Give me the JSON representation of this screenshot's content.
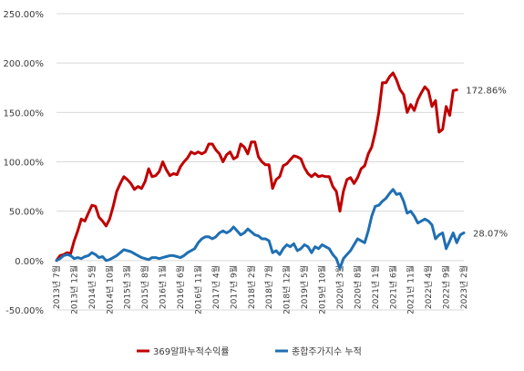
{
  "chart_data": {
    "type": "line",
    "title": "",
    "xlabel": "",
    "ylabel": "",
    "ylim": [
      -50,
      250
    ],
    "y_ticks": [
      "-50.00%",
      "0.00%",
      "50.00%",
      "100.00%",
      "150.00%",
      "200.00%",
      "250.00%"
    ],
    "y_tick_values": [
      -50,
      0,
      50,
      100,
      150,
      200,
      250
    ],
    "grid": "horizontal",
    "legend_position": "bottom",
    "x_range": [
      "2013-07",
      "2023-02"
    ],
    "x_ticks": [
      "2013년 7월",
      "2013년 12월",
      "2014년 5월",
      "2014년 10월",
      "2015년 3월",
      "2015년 8월",
      "2016년 1월",
      "2016년 6월",
      "2016년 11월",
      "2017년 4월",
      "2017년 9월",
      "2018년 2월",
      "2018년 7월",
      "2018년 12월",
      "2019년 5월",
      "2019년 10월",
      "2020년 3월",
      "2020년 8월",
      "2021년 1월",
      "2021년 6월",
      "2021년 11월",
      "2022년 4월",
      "2022년 9월",
      "2023년 2월"
    ],
    "series": [
      {
        "name": "369알파누적수익률",
        "color": "#c00000",
        "end_label": "172.86%",
        "points": [
          [
            "2013-07",
            0
          ],
          [
            "2013-08",
            5
          ],
          [
            "2013-09",
            6
          ],
          [
            "2013-10",
            8
          ],
          [
            "2013-11",
            7
          ],
          [
            "2013-12",
            20
          ],
          [
            "2014-01",
            30
          ],
          [
            "2014-02",
            42
          ],
          [
            "2014-03",
            40
          ],
          [
            "2014-04",
            48
          ],
          [
            "2014-05",
            56
          ],
          [
            "2014-06",
            55
          ],
          [
            "2014-07",
            44
          ],
          [
            "2014-08",
            40
          ],
          [
            "2014-09",
            35
          ],
          [
            "2014-10",
            42
          ],
          [
            "2014-11",
            55
          ],
          [
            "2014-12",
            70
          ],
          [
            "2015-01",
            78
          ],
          [
            "2015-02",
            85
          ],
          [
            "2015-03",
            82
          ],
          [
            "2015-04",
            78
          ],
          [
            "2015-05",
            72
          ],
          [
            "2015-06",
            75
          ],
          [
            "2015-07",
            73
          ],
          [
            "2015-08",
            80
          ],
          [
            "2015-09",
            93
          ],
          [
            "2015-10",
            85
          ],
          [
            "2015-11",
            86
          ],
          [
            "2015-12",
            90
          ],
          [
            "2016-01",
            100
          ],
          [
            "2016-02",
            92
          ],
          [
            "2016-03",
            86
          ],
          [
            "2016-04",
            88
          ],
          [
            "2016-05",
            87
          ],
          [
            "2016-06",
            95
          ],
          [
            "2016-07",
            100
          ],
          [
            "2016-08",
            104
          ],
          [
            "2016-09",
            110
          ],
          [
            "2016-10",
            108
          ],
          [
            "2016-11",
            110
          ],
          [
            "2016-12",
            108
          ],
          [
            "2017-01",
            110
          ],
          [
            "2017-02",
            118
          ],
          [
            "2017-03",
            118
          ],
          [
            "2017-04",
            112
          ],
          [
            "2017-05",
            108
          ],
          [
            "2017-06",
            100
          ],
          [
            "2017-07",
            107
          ],
          [
            "2017-08",
            110
          ],
          [
            "2017-09",
            103
          ],
          [
            "2017-10",
            105
          ],
          [
            "2017-11",
            118
          ],
          [
            "2017-12",
            115
          ],
          [
            "2018-01",
            108
          ],
          [
            "2018-02",
            120
          ],
          [
            "2018-03",
            120
          ],
          [
            "2018-04",
            105
          ],
          [
            "2018-05",
            100
          ],
          [
            "2018-06",
            97
          ],
          [
            "2018-07",
            97
          ],
          [
            "2018-08",
            73
          ],
          [
            "2018-09",
            82
          ],
          [
            "2018-10",
            85
          ],
          [
            "2018-11",
            96
          ],
          [
            "2018-12",
            98
          ],
          [
            "2019-01",
            102
          ],
          [
            "2019-02",
            106
          ],
          [
            "2019-03",
            105
          ],
          [
            "2019-04",
            103
          ],
          [
            "2019-05",
            94
          ],
          [
            "2019-06",
            88
          ],
          [
            "2019-07",
            85
          ],
          [
            "2019-08",
            88
          ],
          [
            "2019-09",
            85
          ],
          [
            "2019-10",
            86
          ],
          [
            "2019-11",
            85
          ],
          [
            "2019-12",
            85
          ],
          [
            "2020-01",
            75
          ],
          [
            "2020-02",
            70
          ],
          [
            "2020-03",
            50
          ],
          [
            "2020-04",
            70
          ],
          [
            "2020-05",
            82
          ],
          [
            "2020-06",
            84
          ],
          [
            "2020-07",
            78
          ],
          [
            "2020-08",
            84
          ],
          [
            "2020-09",
            93
          ],
          [
            "2020-10",
            96
          ],
          [
            "2020-11",
            108
          ],
          [
            "2020-12",
            115
          ],
          [
            "2021-01",
            130
          ],
          [
            "2021-02",
            150
          ],
          [
            "2021-03",
            180
          ],
          [
            "2021-04",
            180
          ],
          [
            "2021-05",
            186
          ],
          [
            "2021-06",
            190
          ],
          [
            "2021-07",
            183
          ],
          [
            "2021-08",
            173
          ],
          [
            "2021-09",
            168
          ],
          [
            "2021-10",
            150
          ],
          [
            "2021-11",
            158
          ],
          [
            "2021-12",
            152
          ],
          [
            "2022-01",
            163
          ],
          [
            "2022-02",
            170
          ],
          [
            "2022-03",
            176
          ],
          [
            "2022-04",
            172
          ],
          [
            "2022-05",
            156
          ],
          [
            "2022-06",
            162
          ],
          [
            "2022-07",
            130
          ],
          [
            "2022-08",
            133
          ],
          [
            "2022-09",
            156
          ],
          [
            "2022-10",
            147
          ],
          [
            "2022-11",
            172
          ],
          [
            "2022-12",
            172.86
          ]
        ]
      },
      {
        "name": "종합주가지수 누적",
        "color": "#1f6fb2",
        "end_label": "28.07%",
        "points": [
          [
            "2013-07",
            0
          ],
          [
            "2013-08",
            2
          ],
          [
            "2013-09",
            5
          ],
          [
            "2013-10",
            6
          ],
          [
            "2013-11",
            5
          ],
          [
            "2013-12",
            2
          ],
          [
            "2014-01",
            3
          ],
          [
            "2014-02",
            2
          ],
          [
            "2014-03",
            4
          ],
          [
            "2014-04",
            5
          ],
          [
            "2014-05",
            8
          ],
          [
            "2014-06",
            6
          ],
          [
            "2014-07",
            3
          ],
          [
            "2014-08",
            4
          ],
          [
            "2014-09",
            0
          ],
          [
            "2014-10",
            1
          ],
          [
            "2014-11",
            3
          ],
          [
            "2014-12",
            5
          ],
          [
            "2015-01",
            8
          ],
          [
            "2015-02",
            11
          ],
          [
            "2015-03",
            10
          ],
          [
            "2015-04",
            9
          ],
          [
            "2015-05",
            7
          ],
          [
            "2015-06",
            5
          ],
          [
            "2015-07",
            3
          ],
          [
            "2015-08",
            2
          ],
          [
            "2015-09",
            1
          ],
          [
            "2015-10",
            3
          ],
          [
            "2015-11",
            3
          ],
          [
            "2015-12",
            2
          ],
          [
            "2016-01",
            3
          ],
          [
            "2016-02",
            4
          ],
          [
            "2016-03",
            5
          ],
          [
            "2016-04",
            5
          ],
          [
            "2016-05",
            4
          ],
          [
            "2016-06",
            3
          ],
          [
            "2016-07",
            5
          ],
          [
            "2016-08",
            8
          ],
          [
            "2016-09",
            10
          ],
          [
            "2016-10",
            12
          ],
          [
            "2016-11",
            18
          ],
          [
            "2016-12",
            22
          ],
          [
            "2017-01",
            24
          ],
          [
            "2017-02",
            24
          ],
          [
            "2017-03",
            22
          ],
          [
            "2017-04",
            24
          ],
          [
            "2017-05",
            28
          ],
          [
            "2017-06",
            30
          ],
          [
            "2017-07",
            28
          ],
          [
            "2017-08",
            30
          ],
          [
            "2017-09",
            34
          ],
          [
            "2017-10",
            30
          ],
          [
            "2017-11",
            26
          ],
          [
            "2017-12",
            28
          ],
          [
            "2018-01",
            32
          ],
          [
            "2018-02",
            29
          ],
          [
            "2018-03",
            26
          ],
          [
            "2018-04",
            25
          ],
          [
            "2018-05",
            22
          ],
          [
            "2018-06",
            22
          ],
          [
            "2018-07",
            20
          ],
          [
            "2018-08",
            8
          ],
          [
            "2018-09",
            10
          ],
          [
            "2018-10",
            6
          ],
          [
            "2018-11",
            12
          ],
          [
            "2018-12",
            16
          ],
          [
            "2019-01",
            14
          ],
          [
            "2019-02",
            17
          ],
          [
            "2019-03",
            10
          ],
          [
            "2019-04",
            12
          ],
          [
            "2019-05",
            16
          ],
          [
            "2019-06",
            14
          ],
          [
            "2019-07",
            8
          ],
          [
            "2019-08",
            14
          ],
          [
            "2019-09",
            12
          ],
          [
            "2019-10",
            16
          ],
          [
            "2019-11",
            14
          ],
          [
            "2019-12",
            12
          ],
          [
            "2020-01",
            6
          ],
          [
            "2020-02",
            2
          ],
          [
            "2020-03",
            -8
          ],
          [
            "2020-04",
            2
          ],
          [
            "2020-05",
            6
          ],
          [
            "2020-06",
            10
          ],
          [
            "2020-07",
            16
          ],
          [
            "2020-08",
            22
          ],
          [
            "2020-09",
            20
          ],
          [
            "2020-10",
            18
          ],
          [
            "2020-11",
            30
          ],
          [
            "2020-12",
            45
          ],
          [
            "2021-01",
            55
          ],
          [
            "2021-02",
            56
          ],
          [
            "2021-03",
            60
          ],
          [
            "2021-04",
            63
          ],
          [
            "2021-05",
            68
          ],
          [
            "2021-06",
            72
          ],
          [
            "2021-07",
            67
          ],
          [
            "2021-08",
            68
          ],
          [
            "2021-09",
            60
          ],
          [
            "2021-10",
            48
          ],
          [
            "2021-11",
            50
          ],
          [
            "2021-12",
            45
          ],
          [
            "2022-01",
            38
          ],
          [
            "2022-02",
            40
          ],
          [
            "2022-03",
            42
          ],
          [
            "2022-04",
            40
          ],
          [
            "2022-05",
            36
          ],
          [
            "2022-06",
            22
          ],
          [
            "2022-07",
            26
          ],
          [
            "2022-08",
            28
          ],
          [
            "2022-09",
            12
          ],
          [
            "2022-10",
            20
          ],
          [
            "2022-11",
            28
          ],
          [
            "2022-12",
            18
          ],
          [
            "2023-01",
            26
          ],
          [
            "2023-02",
            28.07
          ]
        ]
      }
    ]
  }
}
